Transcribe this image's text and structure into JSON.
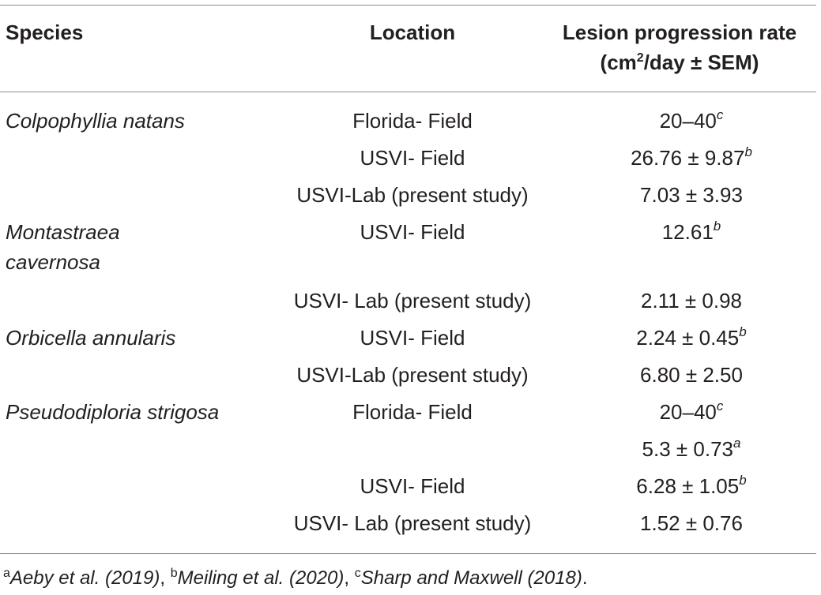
{
  "header": {
    "species": "Species",
    "location": "Location",
    "rate_line1": "Lesion progression rate",
    "rate_line2_pre": "(cm",
    "rate_line2_sup": "2",
    "rate_line2_post": "/day ± SEM)"
  },
  "rows": [
    {
      "species": "Colpophyllia natans",
      "location": "Florida- Field",
      "rate": "20–40",
      "ref": "c"
    },
    {
      "species": "",
      "location": "USVI- Field",
      "rate": "26.76 ± 9.87",
      "ref": "b"
    },
    {
      "species": "",
      "location": "USVI-Lab (present study)",
      "rate": "7.03 ± 3.93",
      "ref": ""
    },
    {
      "species": "Montastraea cavernosa",
      "location": "USVI- Field",
      "rate": "12.61",
      "ref": "b"
    },
    {
      "species": "",
      "location": "USVI- Lab (present study)",
      "rate": "2.11 ± 0.98",
      "ref": ""
    },
    {
      "species": "Orbicella annularis",
      "location": "USVI- Field",
      "rate": "2.24 ± 0.45",
      "ref": "b"
    },
    {
      "species": "",
      "location": "USVI-Lab (present study)",
      "rate": "6.80 ± 2.50",
      "ref": ""
    },
    {
      "species": "Pseudodiploria strigosa",
      "location": "Florida- Field",
      "rate": "20–40",
      "ref": "c"
    },
    {
      "species": "",
      "location": "",
      "rate": "5.3 ± 0.73",
      "ref": "a"
    },
    {
      "species": "",
      "location": "USVI- Field",
      "rate": "6.28 ± 1.05",
      "ref": "b"
    },
    {
      "species": "",
      "location": "USVI- Lab (present study)",
      "rate": "1.52 ± 0.76",
      "ref": ""
    }
  ],
  "footnotes": [
    {
      "mark": "a",
      "text": "Aeby et al. (2019)"
    },
    {
      "mark": "b",
      "text": "Meiling et al. (2020)"
    },
    {
      "mark": "c",
      "text": "Sharp and Maxwell (2018)"
    }
  ],
  "footnote_separator": ", ",
  "footnote_end": "."
}
